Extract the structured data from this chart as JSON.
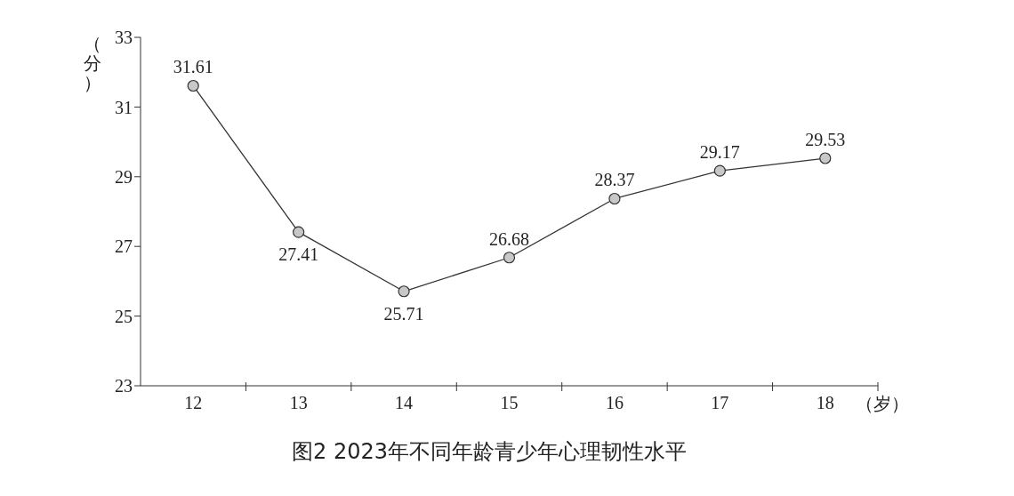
{
  "chart_data": {
    "type": "line",
    "title": "图2 2023年不同年龄青少年心理韧性水平",
    "xlabel": "（岁）",
    "ylabel": "（分）",
    "categories": [
      "12",
      "13",
      "14",
      "15",
      "16",
      "17",
      "18"
    ],
    "series": [
      {
        "color": "#333333",
        "values": [
          31.61,
          27.41,
          25.71,
          26.68,
          28.37,
          29.17,
          29.53
        ]
      }
    ],
    "ylim": [
      23,
      33
    ],
    "yticks": [
      23,
      25,
      27,
      29,
      31,
      33
    ],
    "data_labels": true,
    "marker": "circle",
    "line_style": "solid",
    "grid": false,
    "legend": false
  }
}
